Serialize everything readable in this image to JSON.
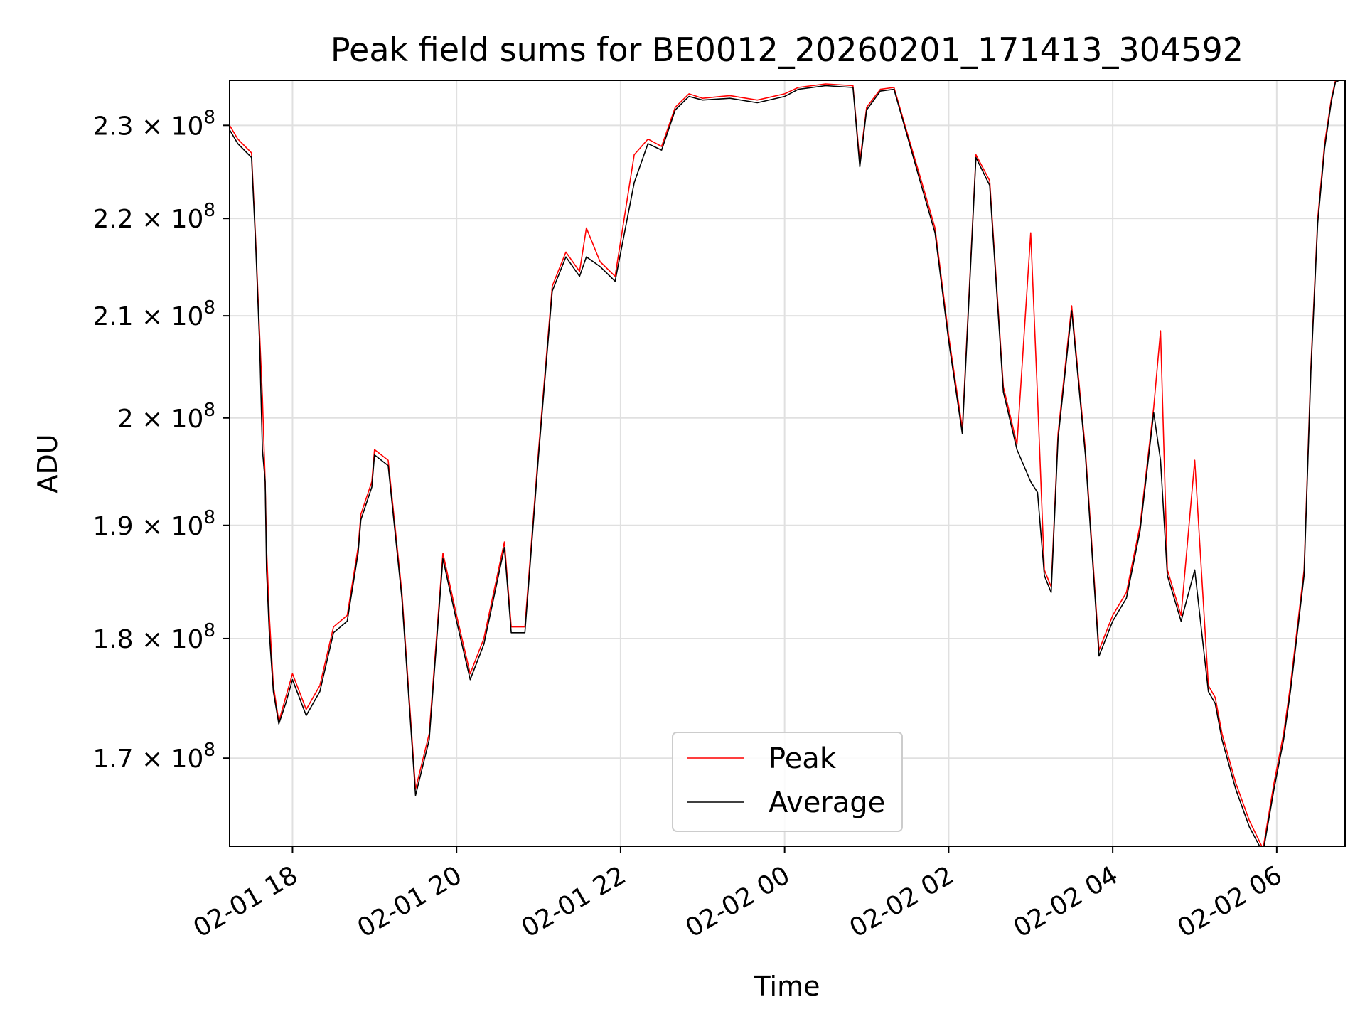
{
  "chart_data": {
    "type": "line",
    "title": "Peak field sums for BE0012_20260201_171413_304592",
    "xlabel": "Time",
    "ylabel": "ADU",
    "y_scale": "log",
    "grid": true,
    "legend_position": "lower center",
    "xlim": [
      "2026-02-01 17:14",
      "2026-02-02 06:50"
    ],
    "ylim": [
      163000000,
      235000000
    ],
    "x_ticks": [
      "2026-02-01 18:00",
      "2026-02-01 20:00",
      "2026-02-01 22:00",
      "2026-02-02 00:00",
      "2026-02-02 02:00",
      "2026-02-02 04:00",
      "2026-02-02 06:00"
    ],
    "x_tick_labels": [
      "02-01 18",
      "02-01 20",
      "02-01 22",
      "02-02 00",
      "02-02 02",
      "02-02 04",
      "02-02 06"
    ],
    "y_ticks": [
      {
        "value": 170000000,
        "mantissa": "1.7",
        "exponent": "8"
      },
      {
        "value": 180000000,
        "mantissa": "1.8",
        "exponent": "8"
      },
      {
        "value": 190000000,
        "mantissa": "1.9",
        "exponent": "8"
      },
      {
        "value": 200000000,
        "mantissa": "2",
        "exponent": "8"
      },
      {
        "value": 210000000,
        "mantissa": "2.1",
        "exponent": "8"
      },
      {
        "value": 220000000,
        "mantissa": "2.2",
        "exponent": "8"
      },
      {
        "value": 230000000,
        "mantissa": "2.3",
        "exponent": "8"
      }
    ],
    "series": [
      {
        "name": "Peak",
        "color": "#ff0000",
        "x": [
          "2026-02-01 17:14",
          "2026-02-01 17:20",
          "2026-02-01 17:30",
          "2026-02-01 17:33",
          "2026-02-01 17:36",
          "2026-02-01 17:38",
          "2026-02-01 17:40",
          "2026-02-01 17:41",
          "2026-02-01 17:43",
          "2026-02-01 17:46",
          "2026-02-01 17:50",
          "2026-02-01 17:55",
          "2026-02-01 18:00",
          "2026-02-01 18:10",
          "2026-02-01 18:20",
          "2026-02-01 18:30",
          "2026-02-01 18:40",
          "2026-02-01 18:48",
          "2026-02-01 18:50",
          "2026-02-01 18:58",
          "2026-02-01 19:00",
          "2026-02-01 19:10",
          "2026-02-01 19:20",
          "2026-02-01 19:30",
          "2026-02-01 19:40",
          "2026-02-01 19:50",
          "2026-02-01 20:00",
          "2026-02-01 20:10",
          "2026-02-01 20:20",
          "2026-02-01 20:35",
          "2026-02-01 20:40",
          "2026-02-01 20:50",
          "2026-02-01 21:00",
          "2026-02-01 21:10",
          "2026-02-01 21:20",
          "2026-02-01 21:30",
          "2026-02-01 21:35",
          "2026-02-01 21:45",
          "2026-02-01 21:56",
          "2026-02-01 22:10",
          "2026-02-01 22:20",
          "2026-02-01 22:30",
          "2026-02-01 22:40",
          "2026-02-01 22:50",
          "2026-02-01 23:00",
          "2026-02-01 23:20",
          "2026-02-01 23:40",
          "2026-02-02 00:00",
          "2026-02-02 00:10",
          "2026-02-02 00:30",
          "2026-02-02 00:50",
          "2026-02-02 00:55",
          "2026-02-02 01:00",
          "2026-02-02 01:10",
          "2026-02-02 01:20",
          "2026-02-02 01:30",
          "2026-02-02 01:40",
          "2026-02-02 01:50",
          "2026-02-02 02:00",
          "2026-02-02 02:10",
          "2026-02-02 02:20",
          "2026-02-02 02:30",
          "2026-02-02 02:40",
          "2026-02-02 02:50",
          "2026-02-02 03:00",
          "2026-02-02 03:05",
          "2026-02-02 03:10",
          "2026-02-02 03:15",
          "2026-02-02 03:20",
          "2026-02-02 03:30",
          "2026-02-02 03:40",
          "2026-02-02 03:50",
          "2026-02-02 04:00",
          "2026-02-02 04:10",
          "2026-02-02 04:20",
          "2026-02-02 04:30",
          "2026-02-02 04:35",
          "2026-02-02 04:40",
          "2026-02-02 04:50",
          "2026-02-02 05:00",
          "2026-02-02 05:10",
          "2026-02-02 05:15",
          "2026-02-02 05:20",
          "2026-02-02 05:30",
          "2026-02-02 05:40",
          "2026-02-02 05:50",
          "2026-02-02 05:58",
          "2026-02-02 06:05",
          "2026-02-02 06:10",
          "2026-02-02 06:20",
          "2026-02-02 06:25",
          "2026-02-02 06:30",
          "2026-02-02 06:35",
          "2026-02-02 06:40",
          "2026-02-02 06:43",
          "2026-02-02 06:50"
        ],
        "values": [
          230000000,
          228500000,
          227000000,
          218000000,
          208000000,
          202000000,
          194000000,
          188000000,
          182000000,
          176000000,
          173000000,
          175000000,
          177000000,
          174000000,
          176000000,
          181000000,
          182000000,
          188000000,
          191000000,
          194000000,
          197000000,
          196000000,
          184000000,
          167500000,
          172000000,
          187500000,
          182000000,
          177000000,
          180000000,
          188500000,
          181000000,
          181000000,
          197000000,
          213000000,
          216500000,
          214500000,
          219000000,
          215500000,
          214000000,
          226800000,
          228500000,
          227700000,
          232000000,
          233500000,
          233000000,
          233300000,
          232800000,
          233500000,
          234200000,
          234600000,
          234400000,
          226000000,
          232000000,
          234000000,
          234200000,
          229000000,
          224000000,
          219000000,
          208000000,
          199000000,
          226800000,
          224000000,
          203000000,
          197500000,
          218500000,
          202000000,
          186000000,
          184500000,
          198500000,
          211000000,
          197000000,
          179000000,
          182000000,
          184000000,
          190000000,
          201000000,
          208500000,
          186000000,
          182000000,
          196000000,
          176000000,
          175000000,
          172000000,
          168000000,
          165000000,
          162800000,
          168000000,
          172000000,
          176000000,
          186000000,
          205000000,
          220000000,
          228000000,
          233000000,
          235000000,
          235500000
        ]
      },
      {
        "name": "Average",
        "color": "#000000",
        "x": [
          "2026-02-01 17:14",
          "2026-02-01 17:20",
          "2026-02-01 17:30",
          "2026-02-01 17:33",
          "2026-02-01 17:36",
          "2026-02-01 17:38",
          "2026-02-01 17:40",
          "2026-02-01 17:41",
          "2026-02-01 17:43",
          "2026-02-01 17:46",
          "2026-02-01 17:50",
          "2026-02-01 17:55",
          "2026-02-01 18:00",
          "2026-02-01 18:10",
          "2026-02-01 18:20",
          "2026-02-01 18:30",
          "2026-02-01 18:40",
          "2026-02-01 18:48",
          "2026-02-01 18:50",
          "2026-02-01 18:58",
          "2026-02-01 19:00",
          "2026-02-01 19:10",
          "2026-02-01 19:20",
          "2026-02-01 19:30",
          "2026-02-01 19:40",
          "2026-02-01 19:50",
          "2026-02-01 20:00",
          "2026-02-01 20:10",
          "2026-02-01 20:20",
          "2026-02-01 20:35",
          "2026-02-01 20:40",
          "2026-02-01 20:50",
          "2026-02-01 21:00",
          "2026-02-01 21:10",
          "2026-02-01 21:20",
          "2026-02-01 21:30",
          "2026-02-01 21:35",
          "2026-02-01 21:45",
          "2026-02-01 21:56",
          "2026-02-01 22:10",
          "2026-02-01 22:20",
          "2026-02-01 22:30",
          "2026-02-01 22:40",
          "2026-02-01 22:50",
          "2026-02-01 23:00",
          "2026-02-01 23:20",
          "2026-02-01 23:40",
          "2026-02-02 00:00",
          "2026-02-02 00:10",
          "2026-02-02 00:30",
          "2026-02-02 00:50",
          "2026-02-02 00:55",
          "2026-02-02 01:00",
          "2026-02-02 01:10",
          "2026-02-02 01:20",
          "2026-02-02 01:30",
          "2026-02-02 01:40",
          "2026-02-02 01:50",
          "2026-02-02 02:00",
          "2026-02-02 02:10",
          "2026-02-02 02:20",
          "2026-02-02 02:30",
          "2026-02-02 02:40",
          "2026-02-02 02:50",
          "2026-02-02 03:00",
          "2026-02-02 03:05",
          "2026-02-02 03:10",
          "2026-02-02 03:15",
          "2026-02-02 03:20",
          "2026-02-02 03:30",
          "2026-02-02 03:40",
          "2026-02-02 03:50",
          "2026-02-02 04:00",
          "2026-02-02 04:10",
          "2026-02-02 04:20",
          "2026-02-02 04:30",
          "2026-02-02 04:35",
          "2026-02-02 04:40",
          "2026-02-02 04:50",
          "2026-02-02 05:00",
          "2026-02-02 05:10",
          "2026-02-02 05:15",
          "2026-02-02 05:20",
          "2026-02-02 05:30",
          "2026-02-02 05:40",
          "2026-02-02 05:50",
          "2026-02-02 05:58",
          "2026-02-02 06:05",
          "2026-02-02 06:10",
          "2026-02-02 06:20",
          "2026-02-02 06:25",
          "2026-02-02 06:30",
          "2026-02-02 06:35",
          "2026-02-02 06:40",
          "2026-02-02 06:43",
          "2026-02-02 06:50"
        ],
        "values": [
          229500000,
          228000000,
          226500000,
          217500000,
          207000000,
          197000000,
          194000000,
          186000000,
          180500000,
          175500000,
          172800000,
          174500000,
          176500000,
          173500000,
          175500000,
          180500000,
          181500000,
          187500000,
          190500000,
          193500000,
          196500000,
          195500000,
          183500000,
          167000000,
          171500000,
          187000000,
          181500000,
          176500000,
          179500000,
          188000000,
          180500000,
          180500000,
          196500000,
          212500000,
          216000000,
          214000000,
          216000000,
          215000000,
          213500000,
          223800000,
          228000000,
          227300000,
          231700000,
          233200000,
          232800000,
          233000000,
          232500000,
          233200000,
          234000000,
          234400000,
          234200000,
          225500000,
          231700000,
          233800000,
          234000000,
          228700000,
          223500000,
          218500000,
          207500000,
          198500000,
          226500000,
          223500000,
          202500000,
          197000000,
          194000000,
          193000000,
          185500000,
          184000000,
          198000000,
          210500000,
          196500000,
          178500000,
          181500000,
          183500000,
          189500000,
          200500000,
          196000000,
          185500000,
          181500000,
          186000000,
          175500000,
          174500000,
          171500000,
          167500000,
          164500000,
          162500000,
          167500000,
          171500000,
          175500000,
          185500000,
          204500000,
          219500000,
          227500000,
          232700000,
          234800000,
          235300000
        ]
      }
    ]
  }
}
